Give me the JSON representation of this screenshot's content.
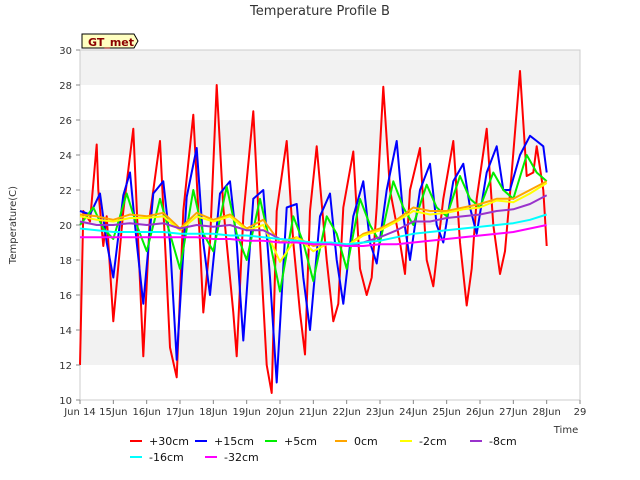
{
  "chart_data": {
    "type": "line",
    "title": "Temperature Profile B",
    "xlabel": "Time",
    "ylabel": "Temperature(C)",
    "badge": "GT_met",
    "xlim": [
      "Jun 14",
      "Jun 29"
    ],
    "x_ticks": [
      "Jun 14",
      "15Jun",
      "16Jun",
      "17Jun",
      "18Jun",
      "19Jun",
      "20Jun",
      "21Jun",
      "22Jun",
      "23Jun",
      "24Jun",
      "25Jun",
      "26Jun",
      "27Jun",
      "28Jun",
      "29"
    ],
    "ylim": [
      10,
      30
    ],
    "y_ticks": [
      10,
      12,
      14,
      16,
      18,
      20,
      22,
      24,
      26,
      28,
      30
    ],
    "grid": "horizontal bands",
    "legend_position": "bottom",
    "x_unit": "day of June",
    "series": [
      {
        "name": "+30cm",
        "color": "#ff0000",
        "x": [
          14.0,
          14.1,
          14.3,
          14.5,
          14.55,
          14.7,
          14.8,
          15.0,
          15.3,
          15.6,
          15.7,
          15.9,
          16.1,
          16.4,
          16.6,
          16.7,
          16.9,
          17.1,
          17.4,
          17.6,
          17.7,
          17.9,
          18.1,
          18.3,
          18.6,
          18.7,
          18.9,
          19.2,
          19.4,
          19.6,
          19.75,
          19.9,
          20.2,
          20.4,
          20.6,
          20.75,
          20.9,
          21.1,
          21.4,
          21.6,
          21.75,
          21.9,
          22.2,
          22.4,
          22.6,
          22.75,
          22.9,
          23.1,
          23.3,
          23.6,
          23.75,
          23.9,
          24.2,
          24.4,
          24.6,
          24.75,
          24.9,
          25.2,
          25.4,
          25.6,
          25.75,
          25.9,
          26.2,
          26.4,
          26.6,
          26.75,
          26.9,
          27.2,
          27.4,
          27.6,
          27.7,
          27.9,
          28.0
        ],
        "y": [
          12.0,
          20.8,
          20.2,
          24.6,
          22.0,
          18.8,
          20.5,
          14.5,
          20.8,
          25.5,
          21.0,
          12.5,
          20.6,
          24.8,
          17.0,
          13.0,
          11.3,
          20.8,
          26.3,
          19.0,
          15.0,
          19.0,
          28.0,
          21.0,
          15.0,
          12.5,
          20.5,
          26.5,
          19.0,
          12.0,
          10.4,
          20.8,
          24.8,
          19.0,
          15.0,
          12.6,
          20.8,
          24.5,
          18.0,
          14.5,
          15.5,
          21.0,
          24.2,
          17.5,
          16.0,
          17.0,
          21.0,
          27.9,
          22.0,
          19.0,
          17.2,
          22.0,
          24.4,
          18.0,
          16.5,
          19.0,
          21.5,
          24.8,
          19.0,
          15.4,
          17.5,
          21.5,
          25.5,
          20.0,
          17.2,
          18.5,
          21.8,
          28.8,
          22.8,
          23.0,
          24.5,
          22.0,
          18.8
        ]
      },
      {
        "name": "+15cm",
        "color": "#0000ff",
        "x": [
          14.0,
          14.3,
          14.6,
          14.8,
          15.0,
          15.3,
          15.5,
          15.7,
          15.9,
          16.2,
          16.5,
          16.7,
          16.9,
          17.2,
          17.5,
          17.7,
          17.9,
          18.2,
          18.5,
          18.7,
          18.9,
          19.2,
          19.5,
          19.7,
          19.9,
          20.2,
          20.5,
          20.7,
          20.9,
          21.2,
          21.5,
          21.7,
          21.9,
          22.2,
          22.5,
          22.7,
          22.9,
          23.2,
          23.5,
          23.7,
          23.9,
          24.2,
          24.5,
          24.7,
          24.9,
          25.2,
          25.5,
          25.7,
          25.9,
          26.2,
          26.5,
          26.7,
          26.9,
          27.2,
          27.5,
          27.7,
          27.9,
          28.0
        ],
        "y": [
          20.8,
          20.6,
          21.8,
          19.0,
          17.0,
          21.7,
          23.0,
          19.0,
          15.5,
          21.8,
          22.5,
          19.0,
          12.3,
          21.6,
          24.4,
          19.0,
          16.0,
          21.8,
          22.5,
          19.0,
          13.4,
          21.5,
          22.0,
          17.0,
          11.0,
          21.0,
          21.2,
          17.0,
          14.0,
          20.5,
          21.8,
          18.0,
          15.5,
          20.5,
          22.5,
          19.0,
          17.8,
          22.0,
          24.8,
          20.5,
          18.0,
          22.0,
          23.5,
          20.0,
          19.0,
          22.5,
          23.5,
          21.0,
          19.5,
          23.0,
          24.5,
          22.0,
          22.0,
          24.0,
          25.1,
          24.8,
          24.5,
          23.0
        ]
      },
      {
        "name": "+5cm",
        "color": "#00ee00",
        "x": [
          14.0,
          14.4,
          14.7,
          15.0,
          15.4,
          15.7,
          16.0,
          16.4,
          16.7,
          17.0,
          17.4,
          17.7,
          18.0,
          18.4,
          18.7,
          19.0,
          19.4,
          19.7,
          20.0,
          20.4,
          20.7,
          21.0,
          21.4,
          21.7,
          22.0,
          22.4,
          22.7,
          23.0,
          23.4,
          23.7,
          24.0,
          24.4,
          24.7,
          25.0,
          25.4,
          25.7,
          26.0,
          26.4,
          26.7,
          27.0,
          27.4,
          27.7,
          28.0
        ],
        "y": [
          20.0,
          21.0,
          19.8,
          19.2,
          21.8,
          20.0,
          18.5,
          21.5,
          19.5,
          17.5,
          22.0,
          19.5,
          18.5,
          22.2,
          19.5,
          18.0,
          21.5,
          19.0,
          16.2,
          20.5,
          19.0,
          16.8,
          20.5,
          19.5,
          17.5,
          21.5,
          20.0,
          19.0,
          22.5,
          21.0,
          20.0,
          22.3,
          21.0,
          20.5,
          22.8,
          21.5,
          21.0,
          23.0,
          22.0,
          21.5,
          24.0,
          23.0,
          22.5
        ]
      },
      {
        "name": "0cm",
        "color": "#ffa500",
        "x": [
          14.0,
          14.5,
          15.0,
          15.5,
          16.0,
          16.5,
          17.0,
          17.5,
          18.0,
          18.5,
          19.0,
          19.5,
          20.0,
          20.5,
          21.0,
          21.5,
          22.0,
          22.5,
          23.0,
          23.5,
          24.0,
          24.5,
          25.0,
          25.5,
          26.0,
          26.5,
          27.0,
          27.5,
          28.0
        ],
        "y": [
          20.6,
          20.5,
          20.3,
          20.6,
          20.5,
          20.7,
          19.8,
          20.7,
          20.3,
          20.6,
          19.8,
          20.3,
          19.0,
          19.3,
          18.8,
          19.0,
          18.8,
          19.5,
          19.8,
          20.3,
          21.0,
          20.8,
          20.8,
          21.0,
          21.2,
          21.5,
          21.5,
          22.0,
          22.5
        ]
      },
      {
        "name": "-2cm",
        "color": "#ffff00",
        "x": [
          14.0,
          14.5,
          15.0,
          15.5,
          16.0,
          16.5,
          17.0,
          17.5,
          18.0,
          18.5,
          19.0,
          19.5,
          20.0,
          20.5,
          21.0,
          21.5,
          22.0,
          22.5,
          23.0,
          23.5,
          24.0,
          24.5,
          25.0,
          25.5,
          26.0,
          26.5,
          27.0,
          27.5,
          28.0
        ],
        "y": [
          20.5,
          20.3,
          20.2,
          20.4,
          20.4,
          20.5,
          19.7,
          20.5,
          20.2,
          20.5,
          19.7,
          20.0,
          17.9,
          19.3,
          18.5,
          19.0,
          18.8,
          19.4,
          19.7,
          20.2,
          20.8,
          20.6,
          20.7,
          20.9,
          21.0,
          21.4,
          21.3,
          21.8,
          22.4
        ]
      },
      {
        "name": "-8cm",
        "color": "#9933cc",
        "x": [
          14.0,
          14.5,
          15.0,
          15.5,
          16.0,
          16.5,
          17.0,
          17.5,
          18.0,
          18.5,
          19.0,
          19.5,
          20.0,
          20.5,
          21.0,
          21.5,
          22.0,
          22.5,
          23.0,
          23.5,
          24.0,
          24.5,
          25.0,
          25.5,
          26.0,
          26.5,
          27.0,
          27.5,
          28.0
        ],
        "y": [
          20.2,
          20.0,
          20.0,
          20.1,
          20.0,
          20.1,
          19.8,
          20.0,
          19.9,
          20.0,
          19.7,
          19.7,
          19.2,
          19.1,
          18.9,
          19.0,
          18.8,
          19.0,
          19.3,
          19.7,
          20.2,
          20.2,
          20.4,
          20.5,
          20.6,
          20.8,
          20.9,
          21.2,
          21.7
        ]
      },
      {
        "name": "-16cm",
        "color": "#00ffff",
        "x": [
          14.0,
          14.5,
          15.0,
          15.5,
          16.0,
          16.5,
          17.0,
          17.5,
          18.0,
          18.5,
          19.0,
          19.5,
          20.0,
          20.5,
          21.0,
          21.5,
          22.0,
          22.5,
          23.0,
          23.5,
          24.0,
          24.5,
          25.0,
          25.5,
          26.0,
          26.5,
          27.0,
          27.5,
          28.0
        ],
        "y": [
          19.8,
          19.7,
          19.6,
          19.6,
          19.6,
          19.6,
          19.5,
          19.5,
          19.5,
          19.4,
          19.4,
          19.3,
          19.2,
          19.1,
          19.0,
          19.0,
          18.9,
          19.0,
          19.1,
          19.3,
          19.5,
          19.6,
          19.7,
          19.8,
          19.9,
          20.0,
          20.1,
          20.3,
          20.6
        ]
      },
      {
        "name": "-32cm",
        "color": "#ff00ff",
        "x": [
          14.0,
          14.5,
          15.0,
          15.5,
          16.0,
          16.5,
          17.0,
          17.5,
          18.0,
          18.5,
          19.0,
          19.5,
          20.0,
          20.5,
          21.0,
          21.5,
          22.0,
          22.5,
          23.0,
          23.5,
          24.0,
          24.5,
          25.0,
          25.5,
          26.0,
          26.5,
          27.0,
          27.5,
          28.0
        ],
        "y": [
          19.3,
          19.3,
          19.3,
          19.3,
          19.3,
          19.3,
          19.3,
          19.3,
          19.2,
          19.2,
          19.1,
          19.1,
          19.0,
          19.0,
          18.9,
          18.9,
          18.8,
          18.8,
          18.9,
          18.9,
          19.0,
          19.1,
          19.2,
          19.3,
          19.4,
          19.5,
          19.6,
          19.8,
          20.0
        ]
      }
    ]
  }
}
